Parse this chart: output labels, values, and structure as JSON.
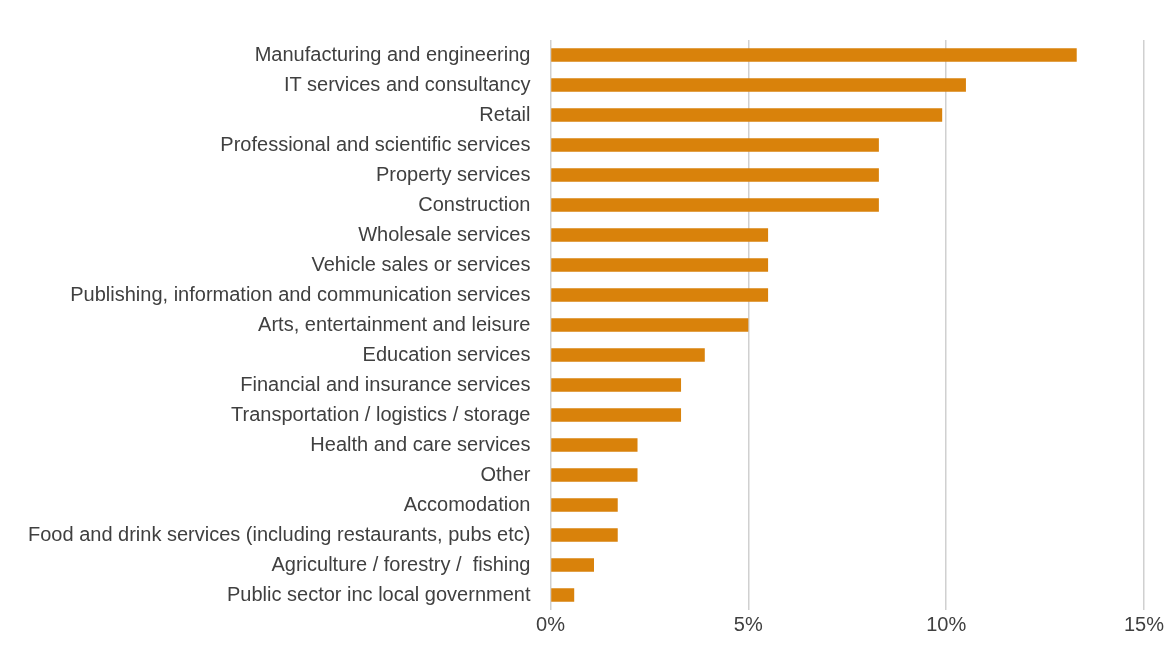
{
  "chart_data": {
    "type": "bar",
    "orientation": "horizontal",
    "categories": [
      "Manufacturing and engineering",
      "IT services and consultancy",
      "Retail",
      "Professional and scientific services",
      "Property services",
      "Construction",
      "Wholesale services",
      "Vehicle sales or services",
      "Publishing, information and communication services",
      "Arts, entertainment and leisure",
      "Education services",
      "Financial and insurance services",
      "Transportation / logistics / storage",
      "Health and care services",
      "Other",
      "Accomodation",
      "Food and drink services (including restaurants, pubs etc)",
      "Agriculture / forestry /  fishing",
      "Public sector inc local government"
    ],
    "values": [
      13.3,
      10.5,
      9.9,
      8.3,
      8.3,
      8.3,
      5.5,
      5.5,
      5.5,
      5.0,
      3.9,
      3.3,
      3.3,
      2.2,
      2.2,
      1.7,
      1.7,
      1.1,
      0.6
    ],
    "color": "#d9820b",
    "xlim": [
      0,
      15
    ],
    "xticks": [
      {
        "value": 0,
        "label": "0%"
      },
      {
        "value": 5,
        "label": "5%"
      },
      {
        "value": 10,
        "label": "10%"
      },
      {
        "value": 15,
        "label": "15%"
      }
    ],
    "grid": "x",
    "legend": false
  }
}
